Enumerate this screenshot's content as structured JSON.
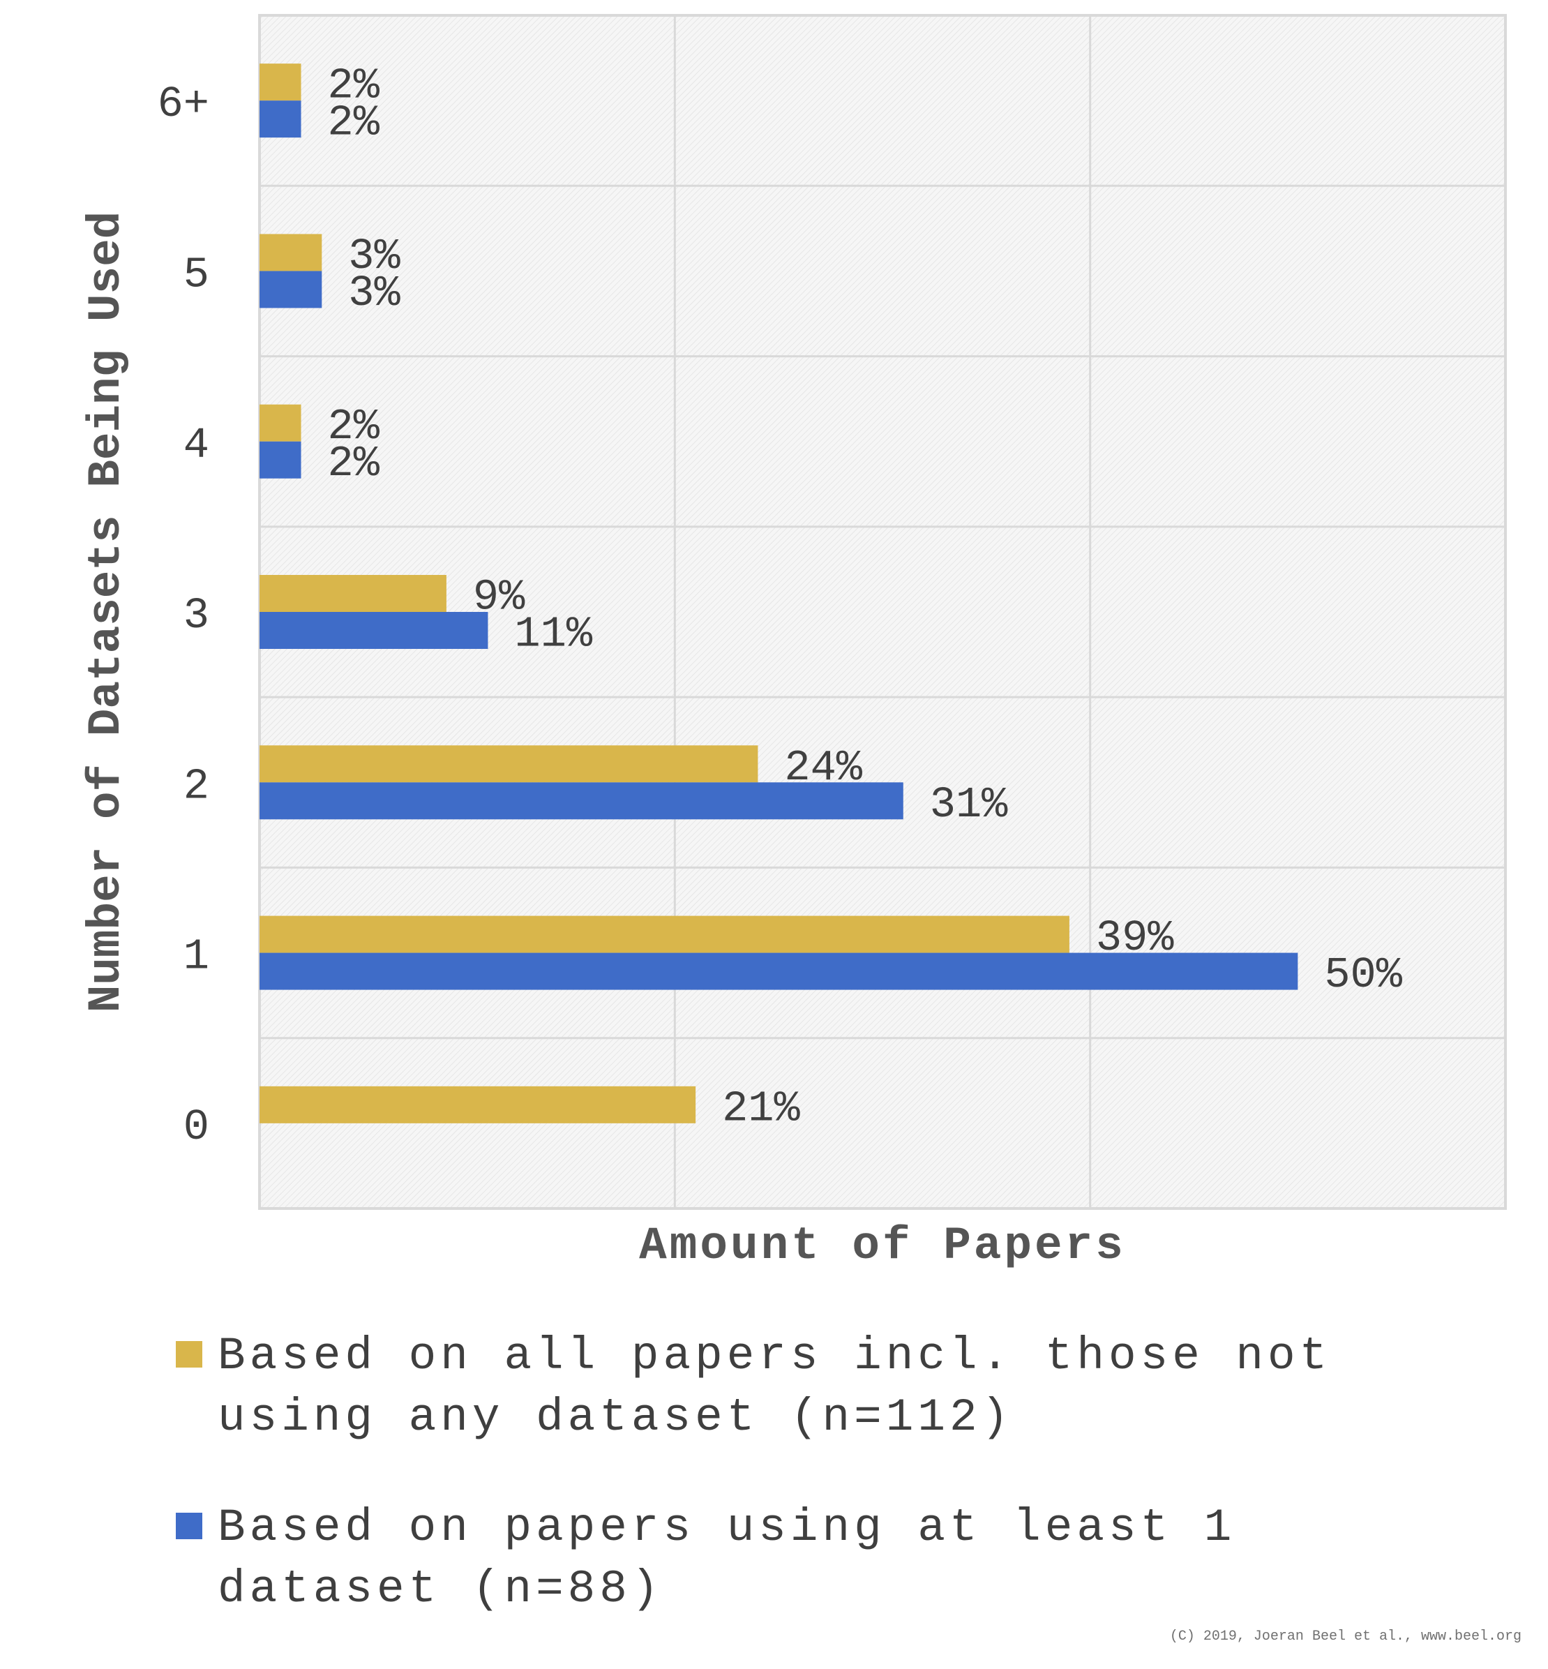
{
  "chart_data": {
    "type": "bar",
    "orientation": "horizontal",
    "categories": [
      "0",
      "1",
      "2",
      "3",
      "4",
      "5",
      "6+"
    ],
    "series": [
      {
        "name": "Based on all papers incl. those not using any dataset (n=112)",
        "color": "#D9B64B",
        "values": [
          21,
          39,
          24,
          9,
          2,
          3,
          2
        ],
        "labels": [
          "21%",
          "39%",
          "24%",
          "9%",
          "2%",
          "3%",
          "2%"
        ]
      },
      {
        "name": "Based on papers using at least 1 dataset (n=88)",
        "color": "#3F6CC8",
        "values": [
          null,
          50,
          31,
          11,
          2,
          3,
          2
        ],
        "labels": [
          "",
          "50%",
          "31%",
          "11%",
          "2%",
          "3%",
          "2%"
        ]
      }
    ],
    "xlabel": "Amount of Papers",
    "ylabel": "Number of Datasets Being Used",
    "xlim": [
      0,
      60
    ],
    "grid": true,
    "legend_position": "bottom"
  },
  "copyright": "(C) 2019, Joeran Beel et al., www.beel.org"
}
